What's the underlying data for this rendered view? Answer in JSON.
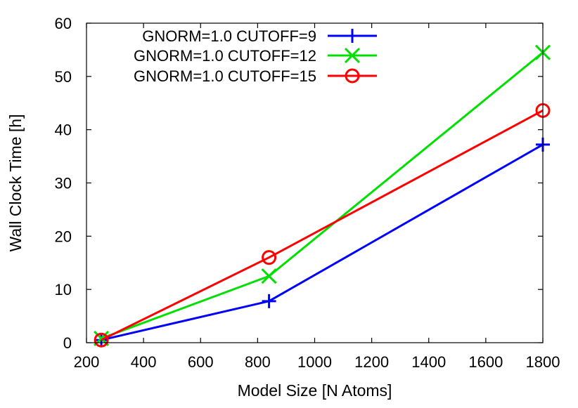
{
  "chart_data": {
    "type": "line",
    "xlabel": "Model Size [N Atoms]",
    "ylabel": "Wall Clock Time [h]",
    "xlim": [
      200,
      1800
    ],
    "ylim": [
      0,
      60
    ],
    "x_ticks": [
      "200",
      "400",
      "600",
      "800",
      "1000",
      "1200",
      "1400",
      "1600",
      "1800"
    ],
    "y_ticks": [
      "0",
      "10",
      "20",
      "30",
      "40",
      "50",
      "60"
    ],
    "x_tick_values": [
      200,
      400,
      600,
      800,
      1000,
      1200,
      1400,
      1600,
      1800
    ],
    "y_tick_values": [
      0,
      10,
      20,
      30,
      40,
      50,
      60
    ],
    "grid": false,
    "legend_position": "top-left",
    "series": [
      {
        "name": "GNORM=1.0 CUTOFF=9",
        "color": "#0000ff",
        "marker": "plus",
        "x": [
          252,
          840,
          1800
        ],
        "y": [
          0.5,
          7.8,
          37.2
        ]
      },
      {
        "name": "GNORM=1.0 CUTOFF=12",
        "color": "#00e000",
        "marker": "cross",
        "x": [
          252,
          840,
          1800
        ],
        "y": [
          0.8,
          12.5,
          54.5
        ]
      },
      {
        "name": "GNORM=1.0 CUTOFF=15",
        "color": "#ff0000",
        "marker": "circle",
        "x": [
          252,
          840,
          1800
        ],
        "y": [
          0.5,
          16.0,
          43.6
        ]
      }
    ]
  }
}
